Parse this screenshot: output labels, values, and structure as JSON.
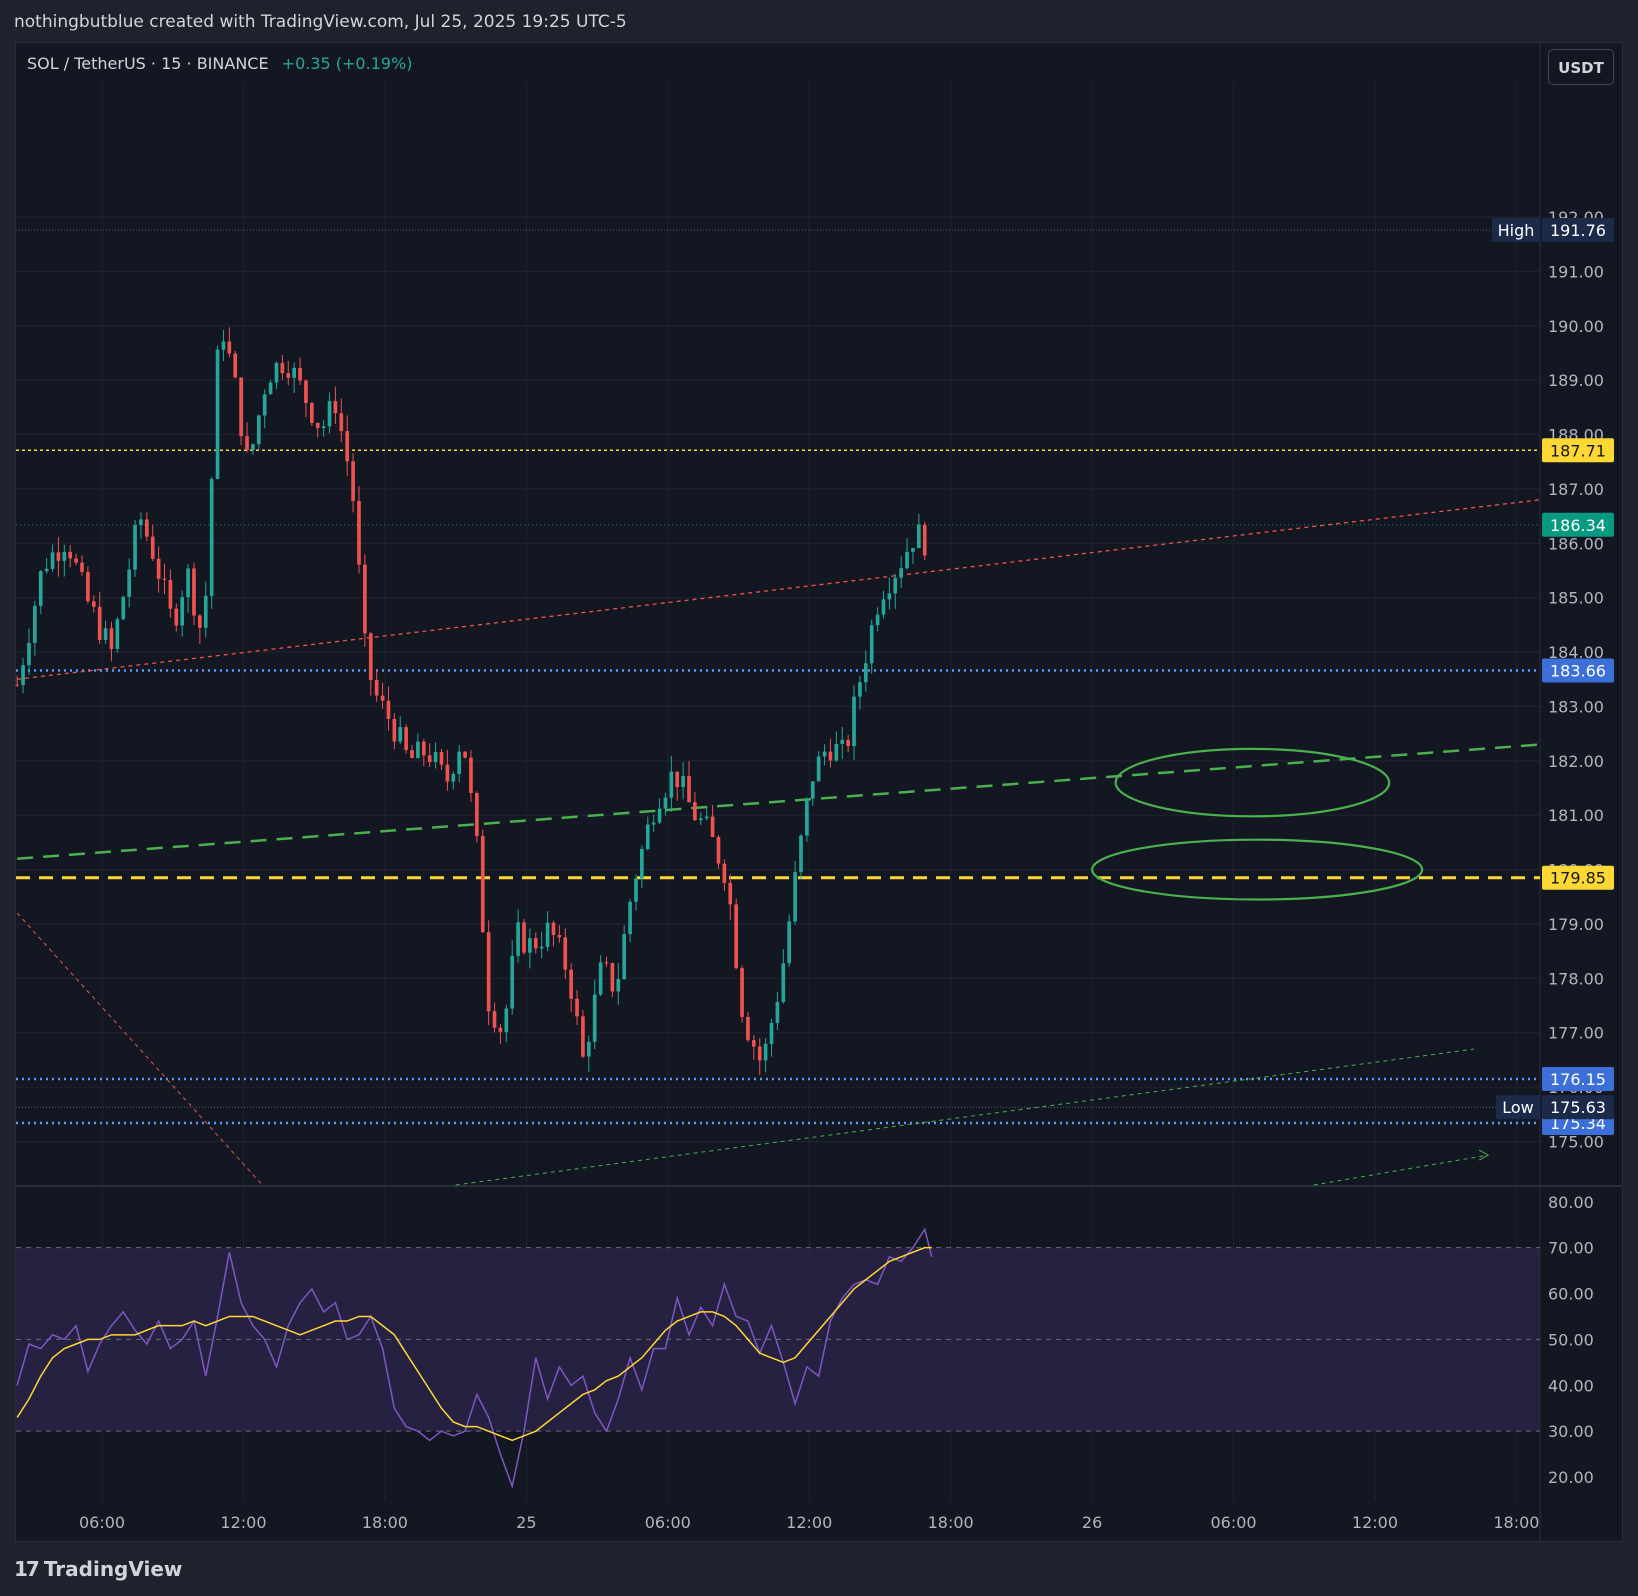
{
  "header": {
    "published_by": "nothingbutblue created with TradingView.com, Jul 25, 2025 19:25 UTC-5"
  },
  "symbol": {
    "name": "SOL / TetherUS · 15 · BINANCE",
    "change": "+0.35 (+0.19%)"
  },
  "currency_button": "USDT",
  "footer": {
    "logo_text": "TradingView"
  },
  "colors": {
    "background": "#131722",
    "grid": "#1f2430",
    "up": "#26a69a",
    "down": "#ef5350",
    "rsi": "#7e57c2",
    "rsi_ma": "#fdd835",
    "rsi_band": "#2a2346",
    "support_blue": "#5b9cf6",
    "level_yellow": "#fdd835",
    "trend_green": "#4caf50",
    "trend_red": "#ef5350"
  },
  "chart_data": [
    {
      "type": "candlestick",
      "interval": "15",
      "ylim": [
        174.2,
        193.6
      ],
      "y_tick_labels": [
        "192.00",
        "191.00",
        "190.00",
        "189.00",
        "188.00",
        "187.00",
        "186.00",
        "185.00",
        "184.00",
        "183.00",
        "182.00",
        "181.00",
        "180.00",
        "179.00",
        "178.00",
        "177.00",
        "176.00",
        "175.00"
      ],
      "y_tick_values": [
        192,
        191,
        190,
        189,
        188,
        187,
        186,
        185,
        184,
        183,
        182,
        181,
        180,
        179,
        178,
        177,
        176,
        175
      ],
      "x_tick_labels": [
        "06:00",
        "12:00",
        "18:00",
        "25",
        "06:00",
        "12:00",
        "18:00",
        "26",
        "06:00",
        "12:00",
        "18:00"
      ],
      "x_tick_hours": [
        6,
        12,
        18,
        24,
        30,
        36,
        42,
        48,
        54,
        60,
        66
      ],
      "x_range_hours": [
        2.35,
        67.0
      ],
      "close_path_hours": [
        2.4,
        3.5,
        4.5,
        5.3,
        6.4,
        7.6,
        8.2,
        9.0,
        9.6,
        10.3,
        11.0,
        11.6,
        12.2,
        13.0,
        13.8,
        14.6,
        15.3,
        15.9,
        16.6,
        17.2,
        17.7,
        18.3,
        19.0,
        19.8,
        20.6,
        21.3,
        21.9,
        22.4,
        23.0,
        23.6,
        24.2,
        25.0,
        25.8,
        26.4,
        27.2,
        27.8,
        28.5,
        29.5,
        30.3,
        31.0,
        31.7,
        32.5,
        33.2,
        34.0,
        34.8,
        35.5,
        36.1,
        36.8,
        37.5,
        38.2,
        39.0,
        39.8,
        40.5,
        41.0
      ],
      "close_path_values": [
        183.4,
        185.6,
        186.1,
        185.0,
        184.0,
        186.5,
        185.8,
        184.5,
        185.5,
        184.2,
        190.2,
        189.0,
        187.4,
        189.1,
        189.4,
        188.7,
        188.1,
        188.6,
        187.1,
        183.8,
        183.1,
        182.7,
        182.0,
        182.2,
        181.6,
        182.5,
        180.4,
        177.6,
        177.0,
        178.8,
        178.6,
        178.9,
        178.1,
        176.5,
        178.2,
        177.8,
        179.7,
        181.3,
        181.8,
        181.1,
        180.7,
        179.9,
        177.3,
        176.4,
        178.0,
        180.1,
        181.7,
        182.3,
        182.1,
        183.6,
        185.1,
        185.6,
        186.2,
        186.0
      ],
      "high_label": "191.76",
      "high": 191.76,
      "low_label": "175.63",
      "low": 175.63,
      "last_price_label": "186.34",
      "last_price": 186.34,
      "levels": [
        {
          "value": 187.71,
          "label": "187.71",
          "style": "yellow-dotted"
        },
        {
          "value": 183.66,
          "label": "183.66",
          "style": "blue-dotted"
        },
        {
          "value": 179.85,
          "label": "179.85",
          "style": "yellow-dashed"
        },
        {
          "value": 176.15,
          "label": "176.15",
          "style": "blue-dotted"
        },
        {
          "value": 175.34,
          "label": "175.34",
          "style": "blue-dotted"
        }
      ],
      "trendlines": [
        {
          "style": "red-dashed",
          "from": [
            2.4,
            183.5
          ],
          "to": [
            67.0,
            186.8
          ]
        },
        {
          "style": "green-dashed",
          "from": [
            2.4,
            180.2
          ],
          "to": [
            67.0,
            182.3
          ]
        },
        {
          "style": "red-thin-dashed",
          "from": [
            2.4,
            179.2
          ],
          "to": [
            12.8,
            174.2
          ]
        },
        {
          "style": "green-thin-dashed",
          "from": [
            21.0,
            174.2
          ],
          "to": [
            64.2,
            176.7
          ]
        },
        {
          "style": "green-thin-dashed",
          "from": [
            57.4,
            174.2
          ],
          "to": [
            64.8,
            174.75
          ]
        }
      ],
      "ellipses": [
        {
          "center": [
            54.8,
            181.6
          ],
          "radius_hours": 5.8,
          "radius_price": 0.62
        },
        {
          "center": [
            55.0,
            180.0
          ],
          "radius_hours": 7.0,
          "radius_price": 0.55
        }
      ]
    },
    {
      "type": "line",
      "name": "RSI",
      "ylim": [
        15,
        83
      ],
      "y_tick_labels": [
        "80.00",
        "70.00",
        "60.00",
        "50.00",
        "40.00",
        "30.00",
        "20.00"
      ],
      "y_tick_values": [
        80,
        70,
        60,
        50,
        40,
        30,
        20
      ],
      "band": [
        30,
        70
      ],
      "midline": 50,
      "rsi_hours": [
        2.4,
        2.9,
        3.4,
        3.9,
        4.4,
        4.9,
        5.4,
        5.9,
        6.4,
        6.9,
        7.4,
        7.9,
        8.4,
        8.9,
        9.4,
        9.9,
        10.4,
        10.9,
        11.4,
        11.9,
        12.4,
        12.9,
        13.4,
        13.9,
        14.4,
        14.9,
        15.4,
        15.9,
        16.4,
        16.9,
        17.4,
        17.9,
        18.4,
        18.9,
        19.4,
        19.9,
        20.4,
        20.9,
        21.4,
        21.9,
        22.4,
        22.9,
        23.4,
        23.9,
        24.4,
        24.9,
        25.4,
        25.9,
        26.4,
        26.9,
        27.4,
        27.9,
        28.4,
        28.9,
        29.4,
        29.9,
        30.4,
        30.9,
        31.4,
        31.9,
        32.4,
        32.9,
        33.4,
        33.9,
        34.4,
        34.9,
        35.4,
        35.9,
        36.4,
        36.9,
        37.4,
        37.9,
        38.4,
        38.9,
        39.4,
        39.9,
        40.4,
        40.9,
        41.2
      ],
      "rsi_values": [
        40,
        49,
        48,
        51,
        50,
        53,
        43,
        49,
        53,
        56,
        52,
        49,
        54,
        48,
        50,
        54,
        42,
        55,
        69,
        58,
        53,
        50,
        44,
        53,
        58,
        61,
        56,
        58,
        50,
        51,
        55,
        48,
        35,
        31,
        30,
        28,
        30,
        29,
        30,
        38,
        33,
        25,
        18,
        30,
        46,
        37,
        44,
        40,
        42,
        34,
        30,
        37,
        46,
        39,
        48,
        48,
        59,
        51,
        57,
        53,
        62,
        55,
        54,
        47,
        53,
        45,
        36,
        44,
        42,
        54,
        59,
        62,
        63,
        62,
        68,
        67,
        70,
        74,
        68
      ],
      "rsi_ma_values": [
        33,
        37,
        42,
        46,
        48,
        49,
        50,
        50,
        51,
        51,
        51,
        52,
        53,
        53,
        53,
        54,
        53,
        54,
        55,
        55,
        55,
        54,
        53,
        52,
        51,
        52,
        53,
        54,
        54,
        55,
        55,
        53,
        51,
        47,
        43,
        39,
        35,
        32,
        31,
        31,
        30,
        29,
        28,
        29,
        30,
        32,
        34,
        36,
        38,
        39,
        41,
        42,
        44,
        46,
        49,
        52,
        54,
        55,
        56,
        56,
        55,
        53,
        50,
        47,
        46,
        45,
        46,
        49,
        52,
        55,
        58,
        61,
        63,
        65,
        67,
        68,
        69,
        70,
        70
      ]
    }
  ]
}
